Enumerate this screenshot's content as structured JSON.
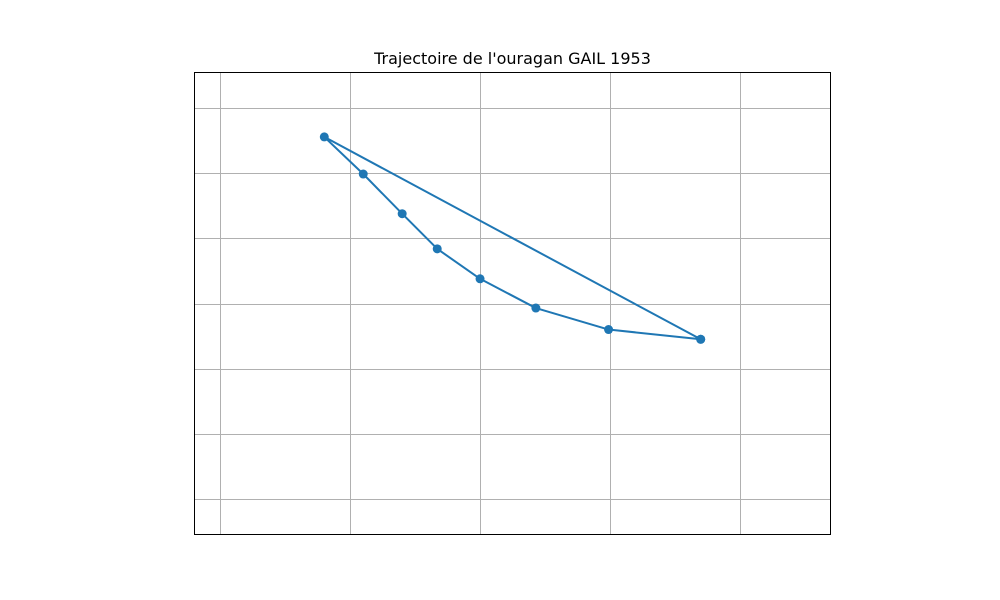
{
  "chart_data": {
    "type": "line",
    "title": "Trajectoire de l'ouragan GAIL 1953",
    "xlabel": "",
    "ylabel": "",
    "xlim": [
      -0.2,
      4.7
    ],
    "ylim": [
      -0.55,
      6.55
    ],
    "x_gridlines": [
      0,
      1,
      2,
      3,
      4
    ],
    "y_gridlines": [
      0,
      1,
      2,
      3,
      4,
      5,
      6
    ],
    "grid": true,
    "tick_labels_visible": false,
    "series": [
      {
        "color": "#1f77b4",
        "marker": "circle",
        "points": [
          {
            "x": 3.7,
            "y": 2.45
          },
          {
            "x": 2.99,
            "y": 2.6
          },
          {
            "x": 2.43,
            "y": 2.93
          },
          {
            "x": 2.0,
            "y": 3.38
          },
          {
            "x": 1.67,
            "y": 3.84
          },
          {
            "x": 1.4,
            "y": 4.38
          },
          {
            "x": 1.1,
            "y": 4.99
          },
          {
            "x": 0.8,
            "y": 5.56
          },
          {
            "x": 3.7,
            "y": 2.45
          }
        ]
      }
    ]
  }
}
